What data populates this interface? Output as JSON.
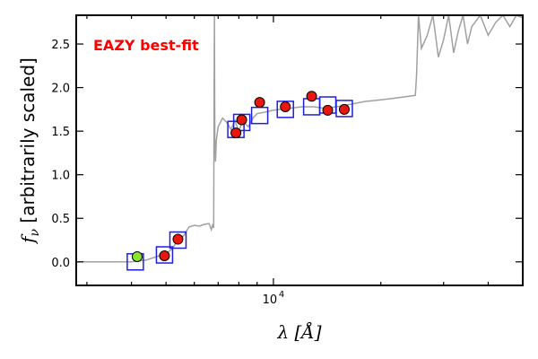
{
  "chart_data": {
    "type": "scatter",
    "title": "",
    "annotation": "EAZY best-fit",
    "annotation_color": "#ff0000",
    "xlabel": {
      "symbol": "λ",
      "unit": "[Å]"
    },
    "ylabel": {
      "symbol": "f",
      "subscript": "ν",
      "text": "[arbitrarily scaled]"
    },
    "xscale": "log",
    "xlim": [
      2800,
      50000
    ],
    "ylim": [
      -0.27,
      2.83
    ],
    "y_ticks": [
      {
        "value": 0.0,
        "label": "0.0"
      },
      {
        "value": 0.5,
        "label": "0.5"
      },
      {
        "value": 1.0,
        "label": "1.0"
      },
      {
        "value": 1.5,
        "label": "1.5"
      },
      {
        "value": 2.0,
        "label": "2.0"
      },
      {
        "value": 2.5,
        "label": "2.5"
      }
    ],
    "x_tick_label": {
      "base": "10",
      "exponent": "4",
      "value": 10000
    },
    "colors": {
      "template": "#a0a0a0",
      "model_box": "#1f1fdd",
      "observed": "#e8160c",
      "outlier": "#8ae234",
      "marker_edge": "#000000"
    },
    "series": [
      {
        "kind": "template_spectrum",
        "points": [
          [
            2800,
            0.0
          ],
          [
            4000,
            0.0
          ],
          [
            4400,
            0.02
          ],
          [
            4700,
            0.06
          ],
          [
            5000,
            0.09
          ],
          [
            5200,
            0.15
          ],
          [
            5400,
            0.25
          ],
          [
            5600,
            0.3
          ],
          [
            5800,
            0.4
          ],
          [
            6000,
            0.42
          ],
          [
            6200,
            0.41
          ],
          [
            6400,
            0.43
          ],
          [
            6600,
            0.44
          ],
          [
            6700,
            0.37
          ],
          [
            6750,
            0.42
          ],
          [
            6800,
            0.39
          ],
          [
            6830,
            2.83
          ],
          [
            6850,
            1.4
          ],
          [
            6880,
            1.15
          ],
          [
            6920,
            1.4
          ],
          [
            7000,
            1.55
          ],
          [
            7100,
            1.6
          ],
          [
            7200,
            1.65
          ],
          [
            7400,
            1.6
          ],
          [
            7600,
            1.52
          ],
          [
            7800,
            1.62
          ],
          [
            8000,
            1.5
          ],
          [
            8200,
            1.62
          ],
          [
            8500,
            1.55
          ],
          [
            8800,
            1.66
          ],
          [
            9000,
            1.7
          ],
          [
            9500,
            1.72
          ],
          [
            10000,
            1.74
          ],
          [
            11000,
            1.76
          ],
          [
            12000,
            1.78
          ],
          [
            13000,
            1.78
          ],
          [
            14000,
            1.76
          ],
          [
            15000,
            1.78
          ],
          [
            16000,
            1.8
          ],
          [
            17000,
            1.82
          ],
          [
            18000,
            1.84
          ],
          [
            20000,
            1.86
          ],
          [
            22000,
            1.88
          ],
          [
            24000,
            1.9
          ],
          [
            25000,
            1.91
          ],
          [
            25200,
            2.15
          ],
          [
            25500,
            2.83
          ],
          [
            26000,
            2.45
          ],
          [
            27000,
            2.6
          ],
          [
            28000,
            2.83
          ],
          [
            29000,
            2.35
          ],
          [
            30000,
            2.55
          ],
          [
            31000,
            2.83
          ],
          [
            32000,
            2.4
          ],
          [
            33000,
            2.65
          ],
          [
            34000,
            2.83
          ],
          [
            35000,
            2.5
          ],
          [
            36000,
            2.7
          ],
          [
            38000,
            2.83
          ],
          [
            40000,
            2.6
          ],
          [
            42000,
            2.75
          ],
          [
            44000,
            2.83
          ],
          [
            46000,
            2.7
          ],
          [
            48000,
            2.83
          ],
          [
            50000,
            2.8
          ]
        ]
      },
      {
        "kind": "model_photometry",
        "points": [
          [
            4100,
            0.0
          ],
          [
            4950,
            0.08
          ],
          [
            5400,
            0.25
          ],
          [
            7850,
            1.52
          ],
          [
            8150,
            1.6
          ],
          [
            9150,
            1.68
          ],
          [
            10800,
            1.75
          ],
          [
            12800,
            1.78
          ],
          [
            14200,
            1.8
          ],
          [
            15800,
            1.76
          ]
        ]
      },
      {
        "kind": "observed_photometry",
        "points": [
          [
            4950,
            0.07,
            0.0
          ],
          [
            5400,
            0.26,
            0.0
          ],
          [
            7850,
            1.48,
            0.0
          ],
          [
            8150,
            1.63,
            0.0
          ],
          [
            9150,
            1.83,
            0.03
          ],
          [
            10800,
            1.78,
            0.0
          ],
          [
            12800,
            1.9,
            0.05
          ],
          [
            14200,
            1.74,
            0.04
          ],
          [
            15800,
            1.75,
            0.0
          ]
        ]
      },
      {
        "kind": "outlier_photometry",
        "points": [
          [
            4150,
            0.06
          ]
        ]
      }
    ]
  }
}
